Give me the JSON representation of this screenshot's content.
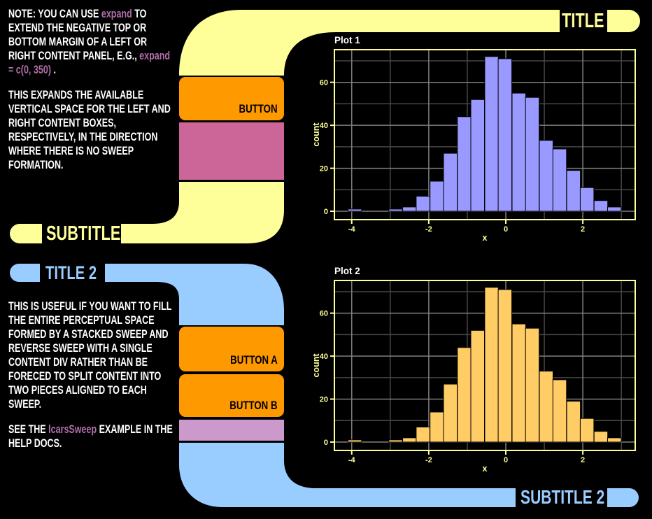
{
  "palette": {
    "background": "#000000",
    "yellow": "#FFFF99",
    "blue": "#99CCFF",
    "orange": "#FF9900",
    "pink": "#CC6699",
    "lilac": "#CC99CC",
    "code_text": "#AF6EA8",
    "body_text": "#FFFFFF",
    "plot1_bar": "#9999FF",
    "plot2_bar": "#FFCC66"
  },
  "sweep1": {
    "title": "TITLE",
    "subtitle": "SUBTITLE",
    "button": "BUTTON",
    "note": {
      "p1_segments": [
        {
          "text": "NOTE: YOU CAN USE "
        },
        {
          "text": "expand",
          "code": true
        },
        {
          "text": " TO EXTEND THE NEGATIVE TOP OR BOTTOM MARGIN OF A LEFT OR RIGHT CONTENT PANEL, E.G., "
        },
        {
          "text": "expand = c(0, 350)",
          "code": true
        },
        {
          "text": " ."
        }
      ],
      "p2_segments": [
        {
          "text": "THIS EXPANDS THE AVAILABLE VERTICAL SPACE FOR THE LEFT AND RIGHT CONTENT BOXES, RESPECTIVELY, IN THE DIRECTION WHERE THERE IS NO SWEEP FORMATION."
        }
      ]
    }
  },
  "sweep2": {
    "title": "TITLE 2",
    "subtitle": "SUBTITLE 2",
    "button_a": "BUTTON A",
    "button_b": "BUTTON B",
    "note": {
      "p1_segments": [
        {
          "text": "THIS IS USEFUL IF YOU WANT TO FILL THE ENTIRE PERCEPTUAL SPACE FORMED BY A STACKED SWEEP AND REVERSE SWEEP WITH A SINGLE CONTENT DIV RATHER THAN BE FORECED TO SPLIT CONTENT INTO TWO PIECES ALIGNED TO EACH SWEEP."
        }
      ],
      "p2_segments": [
        {
          "text": "SEE THE "
        },
        {
          "text": "lcarsSweep",
          "code": true
        },
        {
          "text": " EXAMPLE IN THE HELP DOCS."
        }
      ]
    }
  },
  "chart_data": [
    {
      "type": "bar",
      "title": "Plot 1",
      "xlabel": "x",
      "ylabel": "count",
      "bar_color": "#9999FF",
      "bar_edge": "#000000",
      "title_color": "#FFFFFF",
      "axis_color": "#FFFF99",
      "grid_major": "#7F7F7F",
      "grid_minor": "#474747",
      "xlim": [
        -4.45,
        3.36
      ],
      "ylim": [
        -3.9,
        75.2
      ],
      "x_ticks": [
        -4,
        -2,
        0,
        2
      ],
      "y_ticks": [
        0,
        20,
        40,
        60
      ],
      "x_minor": [
        -3,
        -1,
        1,
        3
      ],
      "y_minor": [
        10,
        30,
        50,
        70
      ],
      "bin_width": 0.355,
      "bin_centers": [
        -3.92,
        -3.57,
        -3.21,
        -2.86,
        -2.5,
        -2.15,
        -1.79,
        -1.44,
        -1.08,
        -0.73,
        -0.37,
        -0.02,
        0.34,
        0.69,
        1.05,
        1.4,
        1.76,
        2.11,
        2.47,
        2.82
      ],
      "counts": [
        1,
        0,
        0,
        1,
        2,
        7,
        14,
        27,
        44,
        52,
        72,
        71,
        55,
        53,
        33,
        29,
        19,
        11,
        5,
        2
      ]
    },
    {
      "type": "bar",
      "title": "Plot 2",
      "xlabel": "x",
      "ylabel": "count",
      "bar_color": "#FFCC66",
      "bar_edge": "#000000",
      "title_color": "#FFFFFF",
      "axis_color": "#FFFF99",
      "grid_major": "#7F7F7F",
      "grid_minor": "#474747",
      "xlim": [
        -4.45,
        3.36
      ],
      "ylim": [
        -3.9,
        75.2
      ],
      "x_ticks": [
        -4,
        -2,
        0,
        2
      ],
      "y_ticks": [
        0,
        20,
        40,
        60
      ],
      "x_minor": [
        -3,
        -1,
        1,
        3
      ],
      "y_minor": [
        10,
        30,
        50,
        70
      ],
      "bin_width": 0.355,
      "bin_centers": [
        -3.92,
        -3.57,
        -3.21,
        -2.86,
        -2.5,
        -2.15,
        -1.79,
        -1.44,
        -1.08,
        -0.73,
        -0.37,
        -0.02,
        0.34,
        0.69,
        1.05,
        1.4,
        1.76,
        2.11,
        2.47,
        2.82
      ],
      "counts": [
        1,
        0,
        0,
        1,
        2,
        7,
        14,
        27,
        44,
        52,
        72,
        71,
        55,
        53,
        33,
        29,
        19,
        11,
        5,
        2
      ]
    }
  ]
}
